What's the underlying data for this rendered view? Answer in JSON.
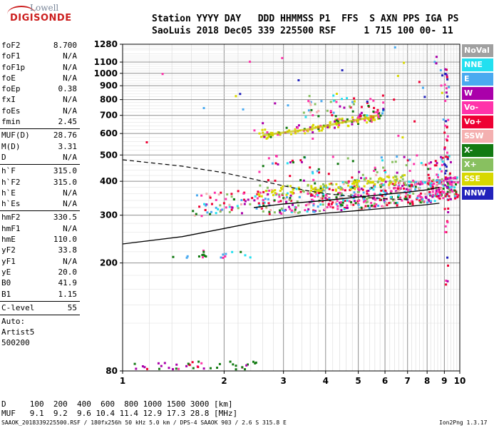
{
  "logo": {
    "top": "Lowell",
    "bottom": "DIGISONDE"
  },
  "header": {
    "line1": "Station YYYY DAY   DDD HHMMSS P1  FFS  S AXN PPS IGA PS",
    "line2": "SaoLuis 2018 Dec05 339 225500 RSF     1 715 100 00- 11"
  },
  "parameters": [
    [
      {
        "name": "foF2",
        "value": "8.700"
      },
      {
        "name": "foF1",
        "value": "N/A"
      },
      {
        "name": "foF1p",
        "value": "N/A"
      },
      {
        "name": "foE",
        "value": "N/A"
      },
      {
        "name": "foEp",
        "value": "0.38"
      },
      {
        "name": "fxI",
        "value": "N/A"
      },
      {
        "name": "foEs",
        "value": "N/A"
      },
      {
        "name": "fmin",
        "value": "2.45"
      }
    ],
    [
      {
        "name": "MUF(D)",
        "value": "28.76"
      },
      {
        "name": "M(D)",
        "value": "3.31"
      },
      {
        "name": "D",
        "value": "N/A"
      }
    ],
    [
      {
        "name": "h`F",
        "value": "315.0"
      },
      {
        "name": "h`F2",
        "value": "315.0"
      },
      {
        "name": "h`E",
        "value": "N/A"
      },
      {
        "name": "h`Es",
        "value": "N/A"
      }
    ],
    [
      {
        "name": "hmF2",
        "value": "330.5"
      },
      {
        "name": "hmF1",
        "value": "N/A"
      },
      {
        "name": "hmE",
        "value": "110.0"
      },
      {
        "name": "yF2",
        "value": "33.8"
      },
      {
        "name": "yF1",
        "value": "N/A"
      },
      {
        "name": "yE",
        "value": "20.0"
      },
      {
        "name": "B0",
        "value": "41.9"
      },
      {
        "name": "B1",
        "value": "1.15"
      }
    ],
    [
      {
        "name": "C-level",
        "value": "55"
      }
    ]
  ],
  "auto": [
    "Auto:",
    "Artist5",
    "500200"
  ],
  "legend": [
    {
      "label": "NoVal",
      "color": "#a0a0a0"
    },
    {
      "label": "NNE",
      "color": "#22e0f0"
    },
    {
      "label": "E",
      "color": "#4aaaf0"
    },
    {
      "label": "W",
      "color": "#aa00aa"
    },
    {
      "label": "Vo-",
      "color": "#ff33aa"
    },
    {
      "label": "Vo+",
      "color": "#ee0033"
    },
    {
      "label": "SSW",
      "color": "#f4b0b0"
    },
    {
      "label": "X-",
      "color": "#127a12"
    },
    {
      "label": "X+",
      "color": "#88c060"
    },
    {
      "label": "SSE",
      "color": "#d8d800"
    },
    {
      "label": "NNW",
      "color": "#2222bb"
    }
  ],
  "bottom": {
    "d_line": "D     100  200  400  600  800 1000 1500 3000 [km]",
    "muf_line": "MUF   9.1  9.2  9.6 10.4 11.4 12.9 17.3 28.8 [MHz]"
  },
  "footer": {
    "text": "SAAOK_2018339225500.RSF / 180fx256h 50 kHz 5.0 km / DPS-4 SAAOK 903 / 2.6 S 315.8 E",
    "version": "Ion2Png 1.3.17"
  },
  "chart_data": {
    "type": "scatter",
    "title": "",
    "xlabel": "",
    "ylabel": "",
    "xlim": [
      1,
      10
    ],
    "ylim": [
      80,
      1280
    ],
    "yscale": "log",
    "x_ticks": [
      "1",
      "2",
      "3",
      "4",
      "5",
      "6",
      "7",
      "8",
      "9",
      "10"
    ],
    "y_ticks": [
      80,
      200,
      300,
      400,
      500,
      600,
      700,
      800,
      900,
      1000,
      1100,
      1280
    ],
    "grid": true,
    "legend_position": "right",
    "profile_solid": [
      [
        1.0,
        235
      ],
      [
        1.5,
        250
      ],
      [
        2.0,
        268
      ],
      [
        2.5,
        283
      ],
      [
        3.0,
        293
      ],
      [
        3.5,
        300
      ],
      [
        4.0,
        305
      ],
      [
        5.0,
        312
      ],
      [
        6.0,
        318
      ],
      [
        7.0,
        323
      ],
      [
        8.0,
        328
      ],
      [
        8.7,
        332
      ]
    ],
    "profile_dashed": [
      [
        1.0,
        480
      ],
      [
        1.5,
        455
      ],
      [
        2.0,
        430
      ],
      [
        2.5,
        405
      ],
      [
        3.0,
        385
      ],
      [
        3.5,
        370
      ],
      [
        4.0,
        360
      ],
      [
        5.0,
        350
      ],
      [
        6.0,
        345
      ],
      [
        7.0,
        342
      ]
    ],
    "trace_o_f2": [
      [
        2.45,
        320
      ],
      [
        3.0,
        330
      ],
      [
        4.0,
        340
      ],
      [
        5.0,
        350
      ],
      [
        6.0,
        358
      ],
      [
        7.0,
        365
      ],
      [
        8.0,
        372
      ],
      [
        8.7,
        380
      ]
    ],
    "trace_second_hop": [
      [
        2.6,
        590
      ],
      [
        3.0,
        605
      ],
      [
        3.5,
        620
      ],
      [
        4.0,
        640
      ],
      [
        4.5,
        660
      ],
      [
        5.0,
        675
      ],
      [
        5.5,
        690
      ],
      [
        5.7,
        700
      ]
    ]
  }
}
